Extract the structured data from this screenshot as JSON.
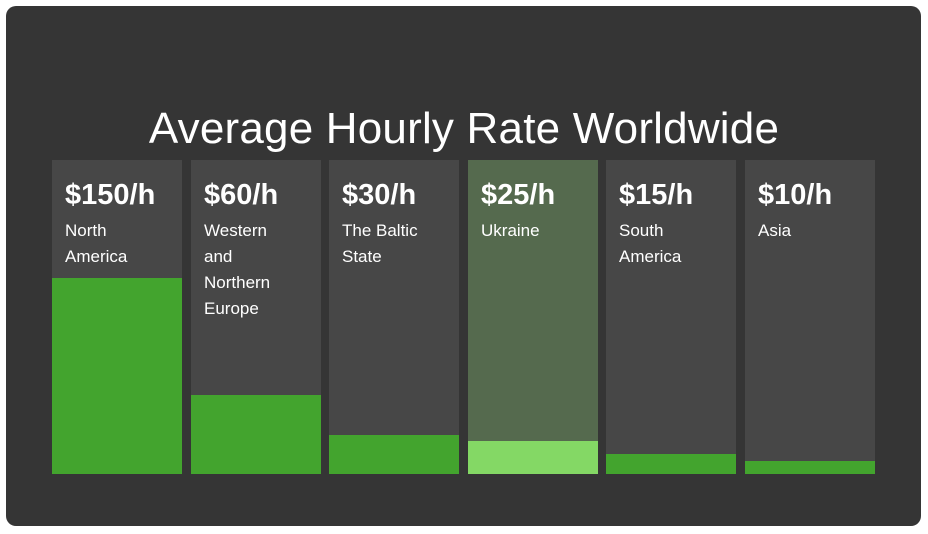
{
  "chart_data": {
    "type": "bar",
    "title": "Average Hourly Rate Worldwide",
    "categories": [
      "North\nAmerica",
      "Western\nand\nNorthern\nEurope",
      "The Baltic\nState",
      "Ukraine",
      "South\nAmerica",
      "Asia"
    ],
    "value_labels": [
      "$150/h",
      "$60/h",
      "$30/h",
      "$25/h",
      "$15/h",
      "$10/h"
    ],
    "values": [
      150,
      60,
      30,
      25,
      15,
      10
    ],
    "unit": "$/h",
    "ylim": [
      0,
      240
    ],
    "highlighted_index": 3,
    "colors": {
      "background": "#353535",
      "column": "#474747",
      "column_highlight": "#556a4e",
      "bar": "#43a42e",
      "bar_highlight": "#84d865",
      "text": "#ffffff"
    }
  }
}
